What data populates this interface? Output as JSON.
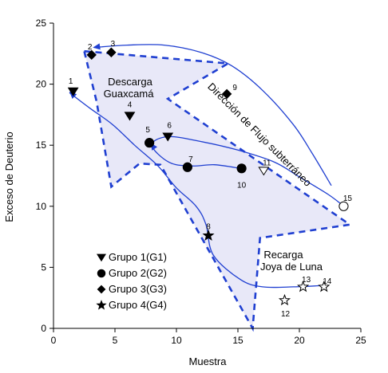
{
  "chart_data": {
    "type": "scatter",
    "xlabel": "Muestra",
    "ylabel": "Exceso de Deuterio",
    "xlim": [
      0,
      25
    ],
    "ylim": [
      0,
      25
    ],
    "xticks": [
      0,
      5,
      10,
      15,
      20,
      25
    ],
    "yticks": [
      0,
      5,
      10,
      15,
      20,
      25
    ],
    "grid": false,
    "legend_position": "bottom-left",
    "series": [
      {
        "name": "Grupo 1(G1)",
        "marker": "triangle-down",
        "filled": true,
        "points": [
          {
            "id": "1",
            "x": 1.6,
            "y": 19.4
          },
          {
            "id": "4",
            "x": 6.2,
            "y": 17.4
          },
          {
            "id": "6",
            "x": 9.3,
            "y": 15.7
          }
        ]
      },
      {
        "name": "Grupo 2(G2)",
        "marker": "circle",
        "filled": true,
        "points": [
          {
            "id": "5",
            "x": 7.8,
            "y": 15.2
          },
          {
            "id": "7",
            "x": 10.9,
            "y": 13.2
          },
          {
            "id": "10",
            "x": 15.3,
            "y": 13.1
          }
        ]
      },
      {
        "name": "Grupo 3(G3)",
        "marker": "diamond",
        "filled": true,
        "points": [
          {
            "id": "2",
            "x": 3.1,
            "y": 22.4
          },
          {
            "id": "3",
            "x": 4.7,
            "y": 22.6
          },
          {
            "id": "9",
            "x": 14.1,
            "y": 19.2
          }
        ]
      },
      {
        "name": "Grupo 4(G4)",
        "marker": "star",
        "filled": true,
        "points": [
          {
            "id": "8",
            "x": 12.6,
            "y": 7.6
          }
        ]
      },
      {
        "name": "",
        "marker": "star",
        "filled": false,
        "points": [
          {
            "id": "12",
            "x": 18.8,
            "y": 2.3
          },
          {
            "id": "13",
            "x": 20.3,
            "y": 3.4
          },
          {
            "id": "14",
            "x": 22.0,
            "y": 3.4
          }
        ]
      },
      {
        "name": "",
        "marker": "triangle-down",
        "filled": false,
        "points": [
          {
            "id": "11",
            "x": 17.1,
            "y": 12.9
          }
        ]
      },
      {
        "name": "",
        "marker": "circle",
        "filled": false,
        "points": [
          {
            "id": "15",
            "x": 23.6,
            "y": 10.0
          }
        ]
      }
    ],
    "annotations": {
      "region1": [
        "Descarga",
        "Guaxcamá"
      ],
      "region2": [
        "Recarga",
        "Joya de Luna"
      ],
      "flow_label": "Dirección de Flujo subterráneo"
    },
    "region_polygon": [
      [
        2.5,
        22.7
      ],
      [
        14.2,
        21.7
      ],
      [
        9.3,
        18.8
      ],
      [
        24.1,
        8.5
      ],
      [
        16.8,
        7.4
      ],
      [
        16.2,
        0.0
      ],
      [
        8.7,
        13.4
      ],
      [
        7.0,
        13.5
      ],
      [
        4.7,
        11.6
      ],
      [
        3.5,
        18.6
      ]
    ],
    "flow_paths": [
      [
        [
          15.2,
          13.1
        ],
        [
          13.1,
          13.4
        ],
        [
          11.2,
          13.3
        ],
        [
          9.4,
          13.6
        ],
        [
          8.0,
          15.0
        ],
        [
          9.3,
          15.7
        ],
        [
          12.0,
          15.3
        ],
        [
          15.0,
          14.6
        ],
        [
          18.0,
          13.6
        ],
        [
          20.0,
          12.4
        ],
        [
          22.3,
          11.0
        ],
        [
          23.5,
          10.1
        ]
      ],
      [
        [
          21.8,
          3.5
        ],
        [
          19.5,
          3.4
        ],
        [
          17.0,
          3.4
        ],
        [
          15.2,
          4.0
        ],
        [
          13.0,
          6.0
        ],
        [
          12.4,
          8.5
        ],
        [
          11.6,
          10.0
        ],
        [
          10.0,
          11.5
        ],
        [
          8.5,
          13.3
        ],
        [
          6.6,
          15.0
        ],
        [
          4.8,
          16.7
        ],
        [
          3.0,
          18.0
        ],
        [
          1.3,
          19.3
        ]
      ],
      [
        [
          22.6,
          11.7
        ],
        [
          21.0,
          14.4
        ],
        [
          19.5,
          16.7
        ],
        [
          17.0,
          19.5
        ],
        [
          14.5,
          21.5
        ],
        [
          12.0,
          22.6
        ],
        [
          9.0,
          23.2
        ],
        [
          6.0,
          23.2
        ],
        [
          3.3,
          23.0
        ]
      ]
    ],
    "flow_arrow_ends": [
      [
        [
          8.3,
          14.6
        ],
        [
          7.9,
          15.2
        ]
      ],
      [
        [
          1.9,
          18.8
        ],
        [
          1.3,
          19.4
        ]
      ],
      [
        [
          3.9,
          23.1
        ],
        [
          3.2,
          23.0
        ]
      ]
    ]
  }
}
